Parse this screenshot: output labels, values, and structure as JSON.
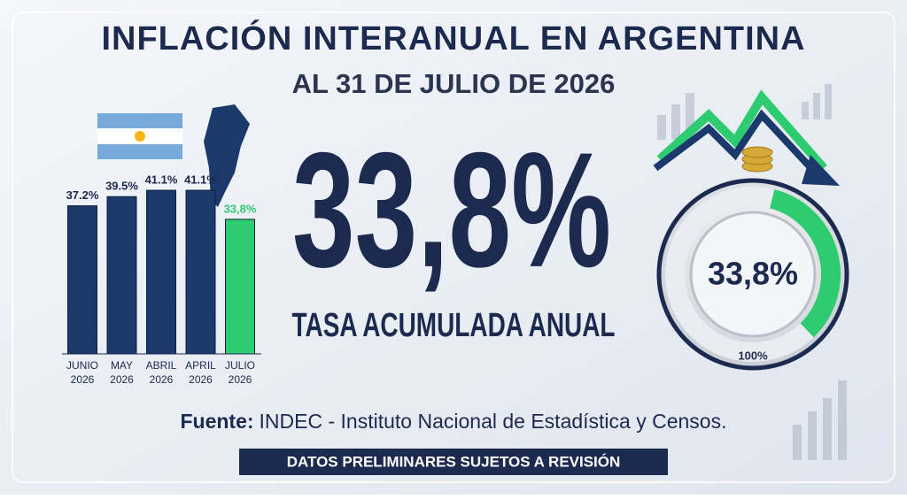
{
  "header": {
    "title": "INFLACIÓN INTERANUAL EN ARGENTINA",
    "subtitle": "AL 31 DE JULIO DE 2026"
  },
  "chart_data": {
    "type": "bar",
    "categories": [
      "JUNIO 2026",
      "MAY 2026",
      "ABRIL 2026",
      "APRIL 2026",
      "JULIO 2026"
    ],
    "values": [
      37.2,
      39.5,
      41.1,
      41.1,
      33.8
    ],
    "value_labels": [
      "37.2%",
      "39.5%",
      "41.1%",
      "41.1%",
      "33,8%"
    ],
    "colors": [
      "#1b3a6b",
      "#1b3a6b",
      "#1b3a6b",
      "#1b3a6b",
      "#2ecc71"
    ]
  },
  "headline": {
    "value": 33.8,
    "value_label": "33,8%",
    "caption": "TASA ACUMULADA ANUAL"
  },
  "gauge": {
    "value": 33.8,
    "value_label": "33,8%",
    "max": {
      "value": 100,
      "label": "100%"
    },
    "color": "#2ecc71"
  },
  "footer": {
    "source_label": "Fuente:",
    "source": "INDEC - Instituto Nacional de Estadística y Censos.",
    "banner": "DATOS PRELIMINARES SUJETOS A REVISIÓN"
  }
}
